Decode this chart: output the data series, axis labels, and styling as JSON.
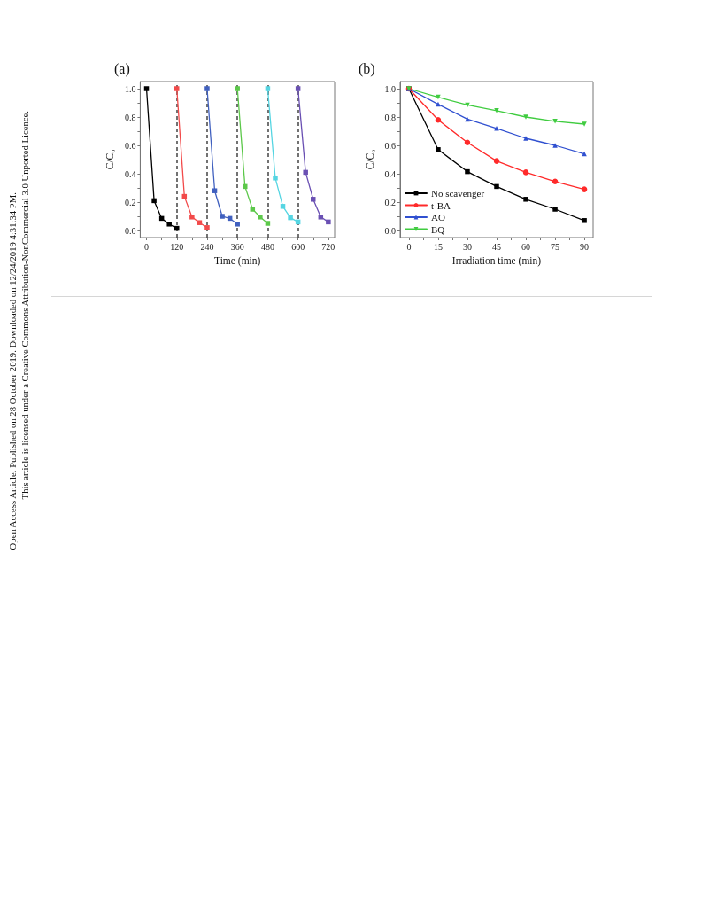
{
  "chart_data": [
    {
      "type": "line",
      "title": "(a)",
      "xlabel": "Time (min)",
      "ylabel": "C/C₀",
      "marker": "square",
      "grid": false,
      "legend": false,
      "xlim": [
        -25,
        745
      ],
      "xticks": [
        0,
        {
          "value": 60,
          "label": null
        },
        120,
        {
          "value": 180,
          "label": null
        },
        240,
        {
          "value": 300,
          "label": null
        },
        360,
        {
          "value": 420,
          "label": null
        },
        480,
        {
          "value": 540,
          "label": null
        },
        600,
        {
          "value": 660,
          "label": null
        },
        720
      ],
      "ylim": [
        -0.05,
        1.05
      ],
      "yticks": [
        {
          "value": 0,
          "label": "0.0"
        },
        {
          "value": 0.1,
          "label": null
        },
        {
          "value": 0.2,
          "label": "0.2"
        },
        {
          "value": 0.3,
          "label": null
        },
        {
          "value": 0.4,
          "label": "0.4"
        },
        {
          "value": 0.5,
          "label": null
        },
        {
          "value": 0.6,
          "label": "0.6"
        },
        {
          "value": 0.7,
          "label": null
        },
        {
          "value": 0.8,
          "label": "0.8"
        },
        {
          "value": 0.9,
          "label": null
        },
        {
          "value": 1,
          "label": "1.0"
        }
      ],
      "series": [
        {
          "color": "#000000",
          "x": [
            0,
            30,
            60,
            90,
            120
          ],
          "values": [
            1.0,
            0.21,
            0.085,
            0.045,
            0.015
          ]
        },
        {
          "color": "#f24a4a",
          "x": [
            120,
            150,
            180,
            210,
            240
          ],
          "values": [
            1.0,
            0.24,
            0.095,
            0.055,
            0.02
          ]
        },
        {
          "color": "#4060bf",
          "x": [
            240,
            270,
            300,
            330,
            360
          ],
          "values": [
            1.0,
            0.28,
            0.1,
            0.085,
            0.045
          ]
        },
        {
          "color": "#5cc84a",
          "x": [
            360,
            390,
            420,
            450,
            480
          ],
          "values": [
            1.0,
            0.31,
            0.15,
            0.095,
            0.05
          ]
        },
        {
          "color": "#55d5e2",
          "x": [
            480,
            510,
            540,
            570,
            600
          ],
          "values": [
            1.0,
            0.37,
            0.17,
            0.09,
            0.06
          ]
        },
        {
          "color": "#6a50b3",
          "x": [
            600,
            630,
            660,
            690,
            720
          ],
          "values": [
            1.0,
            0.41,
            0.22,
            0.095,
            0.06
          ]
        }
      ],
      "ref_lines": [
        {
          "axis": "x",
          "value": 120,
          "color": "#444444",
          "line_style": "dashed"
        },
        {
          "axis": "x",
          "value": 240,
          "color": "#444444",
          "line_style": "dashed"
        },
        {
          "axis": "x",
          "value": 360,
          "color": "#444444",
          "line_style": "dashed"
        },
        {
          "axis": "x",
          "value": 480,
          "color": "#444444",
          "line_style": "dashed"
        },
        {
          "axis": "x",
          "value": 600,
          "color": "#444444",
          "line_style": "dashed"
        }
      ],
      "annotations": [
        "Open Access Article. Published on 28 October 2019. Downloaded on 12/24/2019 4:31:34 PM.",
        "This article is licensed under a Creative Commons Attribution-NonCommercial 3.0 Unported Licence."
      ]
    },
    {
      "type": "line",
      "title": "(b)",
      "xlabel": "Irradiation time (min)",
      "ylabel": "C/C₀",
      "grid": false,
      "legend": "bottom left",
      "x": [
        0,
        15,
        30,
        45,
        60,
        75,
        90
      ],
      "xlim": [
        -4.5,
        94.5
      ],
      "xticks": [
        0,
        {
          "value": 7.5,
          "label": null
        },
        15,
        {
          "value": 22.5,
          "label": null
        },
        30,
        {
          "value": 37.5,
          "label": null
        },
        45,
        {
          "value": 52.5,
          "label": null
        },
        60,
        {
          "value": 67.5,
          "label": null
        },
        75,
        {
          "value": 82.5,
          "label": null
        },
        90
      ],
      "ylim": [
        -0.05,
        1.05
      ],
      "yticks": [
        {
          "value": 0,
          "label": "0.0"
        },
        {
          "value": 0.1,
          "label": null
        },
        {
          "value": 0.2,
          "label": "0.2"
        },
        {
          "value": 0.3,
          "label": null
        },
        {
          "value": 0.4,
          "label": "0.4"
        },
        {
          "value": 0.5,
          "label": null
        },
        {
          "value": 0.6,
          "label": "0.6"
        },
        {
          "value": 0.7,
          "label": null
        },
        {
          "value": 0.8,
          "label": "0.8"
        },
        {
          "value": 0.9,
          "label": null
        },
        {
          "value": 1,
          "label": "1.0"
        }
      ],
      "series": [
        {
          "name": "No scavenger",
          "color": "#000000",
          "marker": "square",
          "values": [
            1.0,
            0.57,
            0.415,
            0.31,
            0.22,
            0.15,
            0.07
          ]
        },
        {
          "name": "t-BA",
          "color": "#ff2a2a",
          "marker": "circle",
          "values": [
            1.0,
            0.78,
            0.62,
            0.49,
            0.41,
            0.345,
            0.29
          ]
        },
        {
          "name": "AO",
          "color": "#3050d0",
          "marker": "triangle",
          "values": [
            1.0,
            0.89,
            0.785,
            0.72,
            0.65,
            0.6,
            0.54
          ]
        },
        {
          "name": "BQ",
          "color": "#40cc40",
          "marker": "triangle-down",
          "values": [
            1.0,
            0.94,
            0.885,
            0.845,
            0.8,
            0.77,
            0.75
          ]
        }
      ]
    }
  ]
}
